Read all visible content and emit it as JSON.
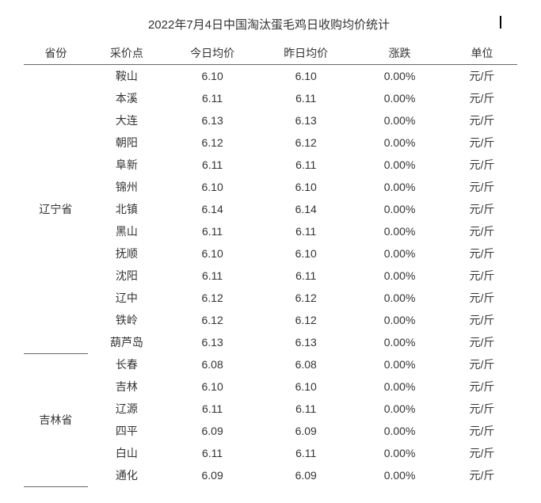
{
  "title": "2022年7月4日中国淘汰蛋毛鸡日收购均价统计",
  "columns": {
    "province": "省份",
    "point": "采价点",
    "today": "今日均价",
    "yesterday": "昨日均价",
    "change": "涨跌",
    "unit": "单位"
  },
  "unit_label": "元/斤",
  "groups": [
    {
      "province": "辽宁省",
      "rows": [
        {
          "point": "鞍山",
          "today": "6.10",
          "yesterday": "6.10",
          "change": "0.00%"
        },
        {
          "point": "本溪",
          "today": "6.11",
          "yesterday": "6.11",
          "change": "0.00%"
        },
        {
          "point": "大连",
          "today": "6.13",
          "yesterday": "6.13",
          "change": "0.00%"
        },
        {
          "point": "朝阳",
          "today": "6.12",
          "yesterday": "6.12",
          "change": "0.00%"
        },
        {
          "point": "阜新",
          "today": "6.11",
          "yesterday": "6.11",
          "change": "0.00%"
        },
        {
          "point": "锦州",
          "today": "6.10",
          "yesterday": "6.10",
          "change": "0.00%"
        },
        {
          "point": "北镇",
          "today": "6.14",
          "yesterday": "6.14",
          "change": "0.00%"
        },
        {
          "point": "黑山",
          "today": "6.11",
          "yesterday": "6.11",
          "change": "0.00%"
        },
        {
          "point": "抚顺",
          "today": "6.10",
          "yesterday": "6.10",
          "change": "0.00%"
        },
        {
          "point": "沈阳",
          "today": "6.11",
          "yesterday": "6.11",
          "change": "0.00%"
        },
        {
          "point": "辽中",
          "today": "6.12",
          "yesterday": "6.12",
          "change": "0.00%"
        },
        {
          "point": "铁岭",
          "today": "6.12",
          "yesterday": "6.12",
          "change": "0.00%"
        },
        {
          "point": "葫芦岛",
          "today": "6.13",
          "yesterday": "6.13",
          "change": "0.00%"
        }
      ]
    },
    {
      "province": "吉林省",
      "rows": [
        {
          "point": "长春",
          "today": "6.08",
          "yesterday": "6.08",
          "change": "0.00%"
        },
        {
          "point": "吉林",
          "today": "6.10",
          "yesterday": "6.10",
          "change": "0.00%"
        },
        {
          "point": "辽源",
          "today": "6.11",
          "yesterday": "6.11",
          "change": "0.00%"
        },
        {
          "point": "四平",
          "today": "6.09",
          "yesterday": "6.09",
          "change": "0.00%"
        },
        {
          "point": "白山",
          "today": "6.11",
          "yesterday": "6.11",
          "change": "0.00%"
        },
        {
          "point": "通化",
          "today": "6.09",
          "yesterday": "6.09",
          "change": "0.00%"
        }
      ]
    }
  ],
  "colors": {
    "text": "#333333",
    "background": "#ffffff",
    "border": "#666666"
  }
}
